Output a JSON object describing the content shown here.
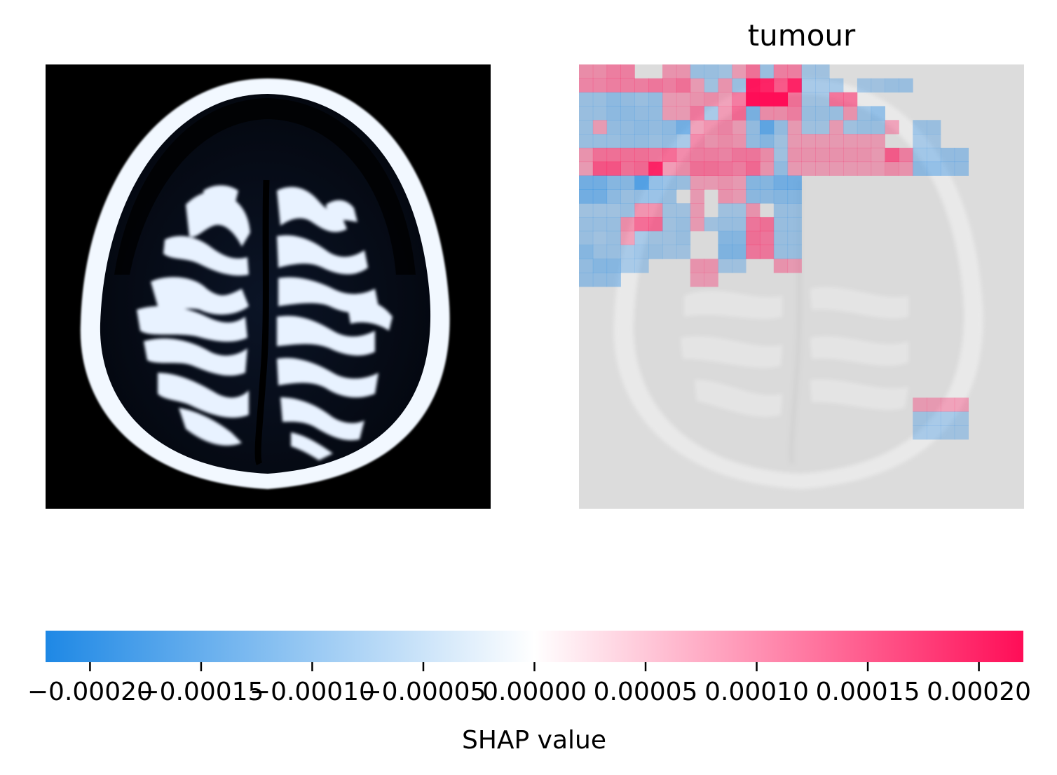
{
  "chart_data": {
    "type": "heatmap",
    "title": "tumour",
    "colorbar": {
      "label": "SHAP value",
      "range": [
        -0.00022,
        0.00022
      ],
      "ticks": [
        -0.0002,
        -0.00015,
        -0.0001,
        -5e-05,
        0.0,
        5e-05,
        0.0001,
        0.00015,
        0.0002
      ],
      "tick_labels": [
        "−0.00020",
        "−0.00015",
        "−0.00010",
        "−0.00005",
        "0.00000",
        "0.00005",
        "0.00010",
        "0.00015",
        "0.00020"
      ],
      "colors": {
        "negative": "#1e88e5",
        "zero": "#ffffff",
        "positive": "#ff0d57"
      }
    },
    "grid": {
      "rows": 32,
      "cols": 32
    },
    "cells": [
      [
        0,
        0,
        4e-05
      ],
      [
        0,
        1,
        4e-05
      ],
      [
        0,
        2,
        6e-05
      ],
      [
        0,
        3,
        6e-05
      ],
      [
        0,
        6,
        3e-05
      ],
      [
        0,
        7,
        3e-05
      ],
      [
        0,
        8,
        -3e-05
      ],
      [
        0,
        9,
        -3e-05
      ],
      [
        0,
        10,
        -2e-05
      ],
      [
        0,
        11,
        2e-05
      ],
      [
        0,
        12,
        8e-05
      ],
      [
        0,
        13,
        -3e-05
      ],
      [
        0,
        14,
        6e-05
      ],
      [
        0,
        15,
        6e-05
      ],
      [
        0,
        16,
        -2e-05
      ],
      [
        0,
        17,
        -2e-05
      ],
      [
        1,
        0,
        5e-05
      ],
      [
        1,
        1,
        5e-05
      ],
      [
        1,
        2,
        6e-05
      ],
      [
        1,
        3,
        6e-05
      ],
      [
        1,
        4,
        6e-05
      ],
      [
        1,
        5,
        7e-05
      ],
      [
        1,
        6,
        6e-05
      ],
      [
        1,
        7,
        8e-05
      ],
      [
        1,
        8,
        2e-05
      ],
      [
        1,
        9,
        -2e-05
      ],
      [
        1,
        10,
        3e-05
      ],
      [
        1,
        11,
        -3e-05
      ],
      [
        1,
        12,
        0.00021
      ],
      [
        1,
        13,
        0.00019
      ],
      [
        1,
        14,
        0.00012
      ],
      [
        1,
        15,
        0.00019
      ],
      [
        1,
        16,
        -2e-05
      ],
      [
        1,
        17,
        -2e-05
      ],
      [
        1,
        18,
        -2e-05
      ],
      [
        1,
        20,
        -2e-05
      ],
      [
        1,
        21,
        -2e-05
      ],
      [
        1,
        22,
        -3e-05
      ],
      [
        1,
        23,
        -3e-05
      ],
      [
        2,
        0,
        -3e-05
      ],
      [
        2,
        1,
        -3e-05
      ],
      [
        2,
        2,
        -5e-05
      ],
      [
        2,
        3,
        -4e-05
      ],
      [
        2,
        4,
        -3e-05
      ],
      [
        2,
        5,
        -4e-05
      ],
      [
        2,
        6,
        2e-05
      ],
      [
        2,
        7,
        2e-05
      ],
      [
        2,
        8,
        3e-05
      ],
      [
        2,
        9,
        4e-05
      ],
      [
        2,
        10,
        2e-05
      ],
      [
        2,
        11,
        7e-05
      ],
      [
        2,
        12,
        0.00022
      ],
      [
        2,
        13,
        0.00022
      ],
      [
        2,
        14,
        0.00022
      ],
      [
        2,
        15,
        8e-05
      ],
      [
        2,
        16,
        -2e-05
      ],
      [
        2,
        17,
        -2e-05
      ],
      [
        2,
        18,
        8e-05
      ],
      [
        2,
        19,
        8e-05
      ],
      [
        3,
        0,
        -3e-05
      ],
      [
        3,
        1,
        -3e-05
      ],
      [
        3,
        2,
        -5e-05
      ],
      [
        3,
        3,
        -5e-05
      ],
      [
        3,
        4,
        -4e-05
      ],
      [
        3,
        5,
        -4e-05
      ],
      [
        3,
        6,
        2e-05
      ],
      [
        3,
        7,
        2e-05
      ],
      [
        3,
        8,
        7e-05
      ],
      [
        3,
        9,
        -2e-05
      ],
      [
        3,
        10,
        3e-05
      ],
      [
        3,
        11,
        9e-05
      ],
      [
        3,
        12,
        -8e-05
      ],
      [
        3,
        13,
        4e-05
      ],
      [
        3,
        14,
        4e-05
      ],
      [
        3,
        15,
        6e-05
      ],
      [
        3,
        16,
        -3e-05
      ],
      [
        3,
        17,
        -3e-05
      ],
      [
        3,
        18,
        -3e-05
      ],
      [
        3,
        19,
        3e-05
      ],
      [
        3,
        20,
        -3e-05
      ],
      [
        3,
        21,
        -5e-05
      ],
      [
        4,
        0,
        -3e-05
      ],
      [
        4,
        1,
        2e-05
      ],
      [
        4,
        2,
        -4e-05
      ],
      [
        4,
        3,
        -4e-05
      ],
      [
        4,
        4,
        -5e-05
      ],
      [
        4,
        5,
        -4e-05
      ],
      [
        4,
        6,
        -5e-05
      ],
      [
        4,
        7,
        -9e-05
      ],
      [
        4,
        8,
        2e-05
      ],
      [
        4,
        9,
        4e-05
      ],
      [
        4,
        10,
        5e-05
      ],
      [
        4,
        11,
        2e-05
      ],
      [
        4,
        12,
        -4e-05
      ],
      [
        4,
        13,
        -0.00012
      ],
      [
        4,
        14,
        -4e-05
      ],
      [
        4,
        15,
        2e-05
      ],
      [
        4,
        16,
        -2e-05
      ],
      [
        4,
        17,
        -2e-05
      ],
      [
        4,
        18,
        2e-05
      ],
      [
        4,
        19,
        -2e-05
      ],
      [
        4,
        20,
        -3e-05
      ],
      [
        4,
        21,
        -3e-05
      ],
      [
        4,
        22,
        2e-05
      ],
      [
        4,
        24,
        -3e-05
      ],
      [
        4,
        25,
        -3e-05
      ],
      [
        5,
        0,
        -3e-05
      ],
      [
        5,
        1,
        -3e-05
      ],
      [
        5,
        2,
        -3e-05
      ],
      [
        5,
        3,
        -4e-05
      ],
      [
        5,
        4,
        -4e-05
      ],
      [
        5,
        5,
        -3e-05
      ],
      [
        5,
        6,
        -4e-05
      ],
      [
        5,
        7,
        -2e-05
      ],
      [
        5,
        8,
        5e-05
      ],
      [
        5,
        9,
        3e-05
      ],
      [
        5,
        10,
        4e-05
      ],
      [
        5,
        11,
        3e-05
      ],
      [
        5,
        12,
        -4e-05
      ],
      [
        5,
        13,
        -6e-05
      ],
      [
        5,
        14,
        -2e-05
      ],
      [
        5,
        15,
        2e-05
      ],
      [
        5,
        16,
        2e-05
      ],
      [
        5,
        17,
        2e-05
      ],
      [
        5,
        18,
        2e-05
      ],
      [
        5,
        19,
        2e-05
      ],
      [
        5,
        20,
        2e-05
      ],
      [
        5,
        21,
        2e-05
      ],
      [
        5,
        24,
        -2e-05
      ],
      [
        5,
        25,
        -2e-05
      ],
      [
        6,
        0,
        3e-05
      ],
      [
        6,
        1,
        8e-05
      ],
      [
        6,
        2,
        8e-05
      ],
      [
        6,
        3,
        8e-05
      ],
      [
        6,
        4,
        8e-05
      ],
      [
        6,
        5,
        7e-05
      ],
      [
        6,
        6,
        9e-05
      ],
      [
        6,
        7,
        5e-05
      ],
      [
        6,
        8,
        6e-05
      ],
      [
        6,
        9,
        6e-05
      ],
      [
        6,
        10,
        5e-05
      ],
      [
        6,
        11,
        7e-05
      ],
      [
        6,
        12,
        7e-05
      ],
      [
        6,
        13,
        4e-05
      ],
      [
        6,
        14,
        -2e-05
      ],
      [
        6,
        15,
        3e-05
      ],
      [
        6,
        16,
        3e-05
      ],
      [
        6,
        17,
        3e-05
      ],
      [
        6,
        18,
        3e-05
      ],
      [
        6,
        19,
        3e-05
      ],
      [
        6,
        20,
        3e-05
      ],
      [
        6,
        21,
        2e-05
      ],
      [
        6,
        22,
        0.00011
      ],
      [
        6,
        23,
        6e-05
      ],
      [
        6,
        24,
        -3e-05
      ],
      [
        6,
        25,
        -3e-05
      ],
      [
        6,
        26,
        -4e-05
      ],
      [
        6,
        27,
        -4e-05
      ],
      [
        7,
        0,
        2e-05
      ],
      [
        7,
        1,
        0.00012
      ],
      [
        7,
        2,
        0.00012
      ],
      [
        7,
        3,
        8e-05
      ],
      [
        7,
        4,
        9e-05
      ],
      [
        7,
        5,
        0.00019
      ],
      [
        7,
        6,
        3e-05
      ],
      [
        7,
        7,
        4e-05
      ],
      [
        7,
        8,
        8e-05
      ],
      [
        7,
        9,
        8e-05
      ],
      [
        7,
        10,
        7e-05
      ],
      [
        7,
        11,
        6e-05
      ],
      [
        7,
        12,
        9e-05
      ],
      [
        7,
        13,
        3e-05
      ],
      [
        7,
        14,
        -4e-05
      ],
      [
        7,
        15,
        2e-05
      ],
      [
        7,
        16,
        2e-05
      ],
      [
        7,
        17,
        2e-05
      ],
      [
        7,
        18,
        2e-05
      ],
      [
        7,
        19,
        2e-05
      ],
      [
        7,
        20,
        2e-05
      ],
      [
        7,
        21,
        2e-05
      ],
      [
        7,
        22,
        4e-05
      ],
      [
        7,
        23,
        3e-05
      ],
      [
        7,
        24,
        -5e-05
      ],
      [
        7,
        25,
        -5e-05
      ],
      [
        7,
        26,
        -4e-05
      ],
      [
        7,
        27,
        -4e-05
      ],
      [
        8,
        0,
        -9e-05
      ],
      [
        8,
        1,
        -9e-05
      ],
      [
        8,
        2,
        -6e-05
      ],
      [
        8,
        3,
        -6e-05
      ],
      [
        8,
        4,
        -0.00014
      ],
      [
        8,
        5,
        -5e-05
      ],
      [
        8,
        6,
        -4e-05
      ],
      [
        8,
        7,
        -3e-05
      ],
      [
        8,
        8,
        2e-05
      ],
      [
        8,
        9,
        2e-05
      ],
      [
        8,
        10,
        3e-05
      ],
      [
        8,
        11,
        2e-05
      ],
      [
        8,
        12,
        -6e-05
      ],
      [
        8,
        13,
        -6e-05
      ],
      [
        8,
        14,
        -9e-05
      ],
      [
        8,
        15,
        -9e-05
      ],
      [
        9,
        0,
        -9e-05
      ],
      [
        9,
        1,
        -9e-05
      ],
      [
        9,
        2,
        -5e-05
      ],
      [
        9,
        3,
        -3e-05
      ],
      [
        9,
        4,
        -4e-05
      ],
      [
        9,
        5,
        -4e-05
      ],
      [
        9,
        6,
        -3e-05
      ],
      [
        9,
        8,
        2e-05
      ],
      [
        9,
        10,
        3e-05
      ],
      [
        9,
        11,
        2e-05
      ],
      [
        9,
        12,
        -5e-05
      ],
      [
        9,
        13,
        -5e-05
      ],
      [
        9,
        14,
        -6e-05
      ],
      [
        9,
        15,
        -6e-05
      ],
      [
        10,
        0,
        -2e-05
      ],
      [
        10,
        1,
        -2e-05
      ],
      [
        10,
        2,
        -2e-05
      ],
      [
        10,
        3,
        -3e-05
      ],
      [
        10,
        4,
        4e-05
      ],
      [
        10,
        5,
        4e-05
      ],
      [
        10,
        6,
        -2e-05
      ],
      [
        10,
        7,
        -2e-05
      ],
      [
        10,
        8,
        2e-05
      ],
      [
        10,
        10,
        -2e-05
      ],
      [
        10,
        11,
        -2e-05
      ],
      [
        10,
        12,
        3e-05
      ],
      [
        10,
        14,
        -3e-05
      ],
      [
        10,
        15,
        -3e-05
      ],
      [
        11,
        0,
        -3e-05
      ],
      [
        11,
        1,
        -3e-05
      ],
      [
        11,
        2,
        -3e-05
      ],
      [
        11,
        3,
        4e-05
      ],
      [
        11,
        4,
        9e-05
      ],
      [
        11,
        5,
        9e-05
      ],
      [
        11,
        6,
        -2e-05
      ],
      [
        11,
        7,
        -3e-05
      ],
      [
        11,
        8,
        2e-05
      ],
      [
        11,
        9,
        -2e-05
      ],
      [
        11,
        10,
        -3e-05
      ],
      [
        11,
        11,
        -3e-05
      ],
      [
        11,
        12,
        7e-05
      ],
      [
        11,
        13,
        8e-05
      ],
      [
        11,
        14,
        -3e-05
      ],
      [
        11,
        15,
        -3e-05
      ],
      [
        12,
        0,
        -3e-05
      ],
      [
        12,
        1,
        -2e-05
      ],
      [
        12,
        2,
        -3e-05
      ],
      [
        12,
        3,
        2e-05
      ],
      [
        12,
        4,
        -2e-05
      ],
      [
        12,
        5,
        -2e-05
      ],
      [
        12,
        6,
        -2e-05
      ],
      [
        12,
        7,
        -3e-05
      ],
      [
        12,
        10,
        -6e-05
      ],
      [
        12,
        11,
        -6e-05
      ],
      [
        12,
        12,
        8e-05
      ],
      [
        12,
        13,
        7e-05
      ],
      [
        12,
        14,
        -3e-05
      ],
      [
        12,
        15,
        -3e-05
      ],
      [
        13,
        0,
        -6e-05
      ],
      [
        13,
        1,
        -3e-05
      ],
      [
        13,
        2,
        -3e-05
      ],
      [
        13,
        3,
        -2e-05
      ],
      [
        13,
        4,
        -3e-05
      ],
      [
        13,
        5,
        -3e-05
      ],
      [
        13,
        6,
        -2e-05
      ],
      [
        13,
        7,
        -2e-05
      ],
      [
        13,
        10,
        -7e-05
      ],
      [
        13,
        11,
        -7e-05
      ],
      [
        13,
        12,
        7e-05
      ],
      [
        13,
        13,
        7e-05
      ],
      [
        13,
        14,
        -3e-05
      ],
      [
        13,
        15,
        -3e-05
      ],
      [
        14,
        0,
        -4e-05
      ],
      [
        14,
        1,
        -6e-05
      ],
      [
        14,
        2,
        -6e-05
      ],
      [
        14,
        3,
        -2e-05
      ],
      [
        14,
        4,
        -2e-05
      ],
      [
        14,
        8,
        3e-05
      ],
      [
        14,
        9,
        3e-05
      ],
      [
        14,
        10,
        -2e-05
      ],
      [
        14,
        11,
        -2e-05
      ],
      [
        14,
        14,
        3e-05
      ],
      [
        14,
        15,
        2e-05
      ],
      [
        15,
        0,
        -4e-05
      ],
      [
        15,
        1,
        -4e-05
      ],
      [
        15,
        2,
        -4e-05
      ],
      [
        15,
        8,
        2e-05
      ],
      [
        15,
        9,
        2e-05
      ],
      [
        24,
        24,
        2e-05
      ],
      [
        24,
        25,
        2e-05
      ],
      [
        24,
        26,
        2e-05
      ],
      [
        24,
        27,
        2e-05
      ],
      [
        25,
        24,
        -2e-05
      ],
      [
        25,
        25,
        -2e-05
      ],
      [
        25,
        26,
        -2e-05
      ],
      [
        25,
        27,
        -2e-05
      ],
      [
        26,
        24,
        -2e-05
      ],
      [
        26,
        25,
        -2e-05
      ],
      [
        26,
        26,
        -2e-05
      ],
      [
        26,
        27,
        -2e-05
      ]
    ]
  }
}
